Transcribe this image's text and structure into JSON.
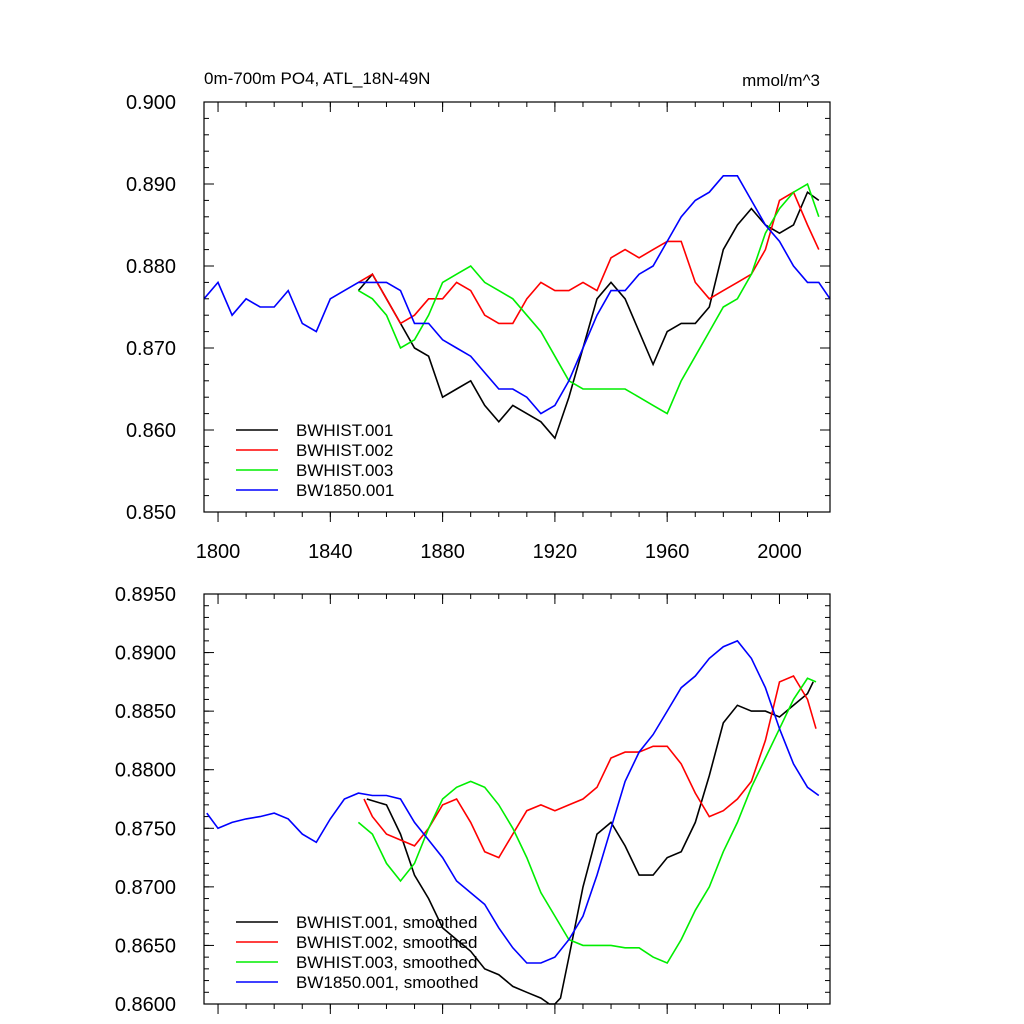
{
  "chart_data": [
    {
      "type": "line",
      "title": "0m-700m PO4, ATL_18N-49N",
      "units": "mmol/m^3",
      "xlim": [
        1795,
        2018
      ],
      "ylim": [
        0.85,
        0.9
      ],
      "x_ticks": [
        1800,
        1840,
        1880,
        1920,
        1960,
        2000
      ],
      "x_tick_labels": [
        "1800",
        "1840",
        "1880",
        "1920",
        "1960",
        "2000"
      ],
      "y_ticks": [
        0.85,
        0.86,
        0.87,
        0.88,
        0.89,
        0.9
      ],
      "y_tick_labels": [
        "0.850",
        "0.860",
        "0.870",
        "0.880",
        "0.890",
        "0.900"
      ],
      "legend_position": "bottom-left",
      "series": [
        {
          "name": "BWHIST.001",
          "color": "#000000",
          "x": [
            1850,
            1855,
            1860,
            1865,
            1870,
            1875,
            1880,
            1885,
            1890,
            1895,
            1900,
            1905,
            1910,
            1915,
            1920,
            1925,
            1930,
            1935,
            1940,
            1945,
            1950,
            1955,
            1960,
            1965,
            1970,
            1975,
            1980,
            1985,
            1990,
            1995,
            2000,
            2005,
            2010,
            2014
          ],
          "values": [
            0.877,
            0.879,
            0.876,
            0.873,
            0.87,
            0.869,
            0.864,
            0.865,
            0.866,
            0.863,
            0.861,
            0.863,
            0.862,
            0.861,
            0.859,
            0.864,
            0.87,
            0.876,
            0.878,
            0.876,
            0.872,
            0.868,
            0.872,
            0.873,
            0.873,
            0.875,
            0.882,
            0.885,
            0.887,
            0.885,
            0.884,
            0.885,
            0.889,
            0.888
          ]
        },
        {
          "name": "BWHIST.002",
          "color": "#ff0000",
          "x": [
            1850,
            1855,
            1860,
            1865,
            1870,
            1875,
            1880,
            1885,
            1890,
            1895,
            1900,
            1905,
            1910,
            1915,
            1920,
            1925,
            1930,
            1935,
            1940,
            1945,
            1950,
            1955,
            1960,
            1965,
            1970,
            1975,
            1980,
            1985,
            1990,
            1995,
            2000,
            2005,
            2010,
            2014
          ],
          "values": [
            0.878,
            0.879,
            0.876,
            0.873,
            0.874,
            0.876,
            0.876,
            0.878,
            0.877,
            0.874,
            0.873,
            0.873,
            0.876,
            0.878,
            0.877,
            0.877,
            0.878,
            0.877,
            0.881,
            0.882,
            0.881,
            0.882,
            0.883,
            0.883,
            0.878,
            0.876,
            0.877,
            0.878,
            0.879,
            0.882,
            0.888,
            0.889,
            0.885,
            0.882
          ]
        },
        {
          "name": "BWHIST.003",
          "color": "#00ee00",
          "x": [
            1850,
            1855,
            1860,
            1865,
            1870,
            1875,
            1880,
            1885,
            1890,
            1895,
            1900,
            1905,
            1910,
            1915,
            1920,
            1925,
            1930,
            1935,
            1940,
            1945,
            1950,
            1955,
            1960,
            1965,
            1970,
            1975,
            1980,
            1985,
            1990,
            1995,
            2000,
            2005,
            2010,
            2014
          ],
          "values": [
            0.877,
            0.876,
            0.874,
            0.87,
            0.871,
            0.874,
            0.878,
            0.879,
            0.88,
            0.878,
            0.877,
            0.876,
            0.874,
            0.872,
            0.869,
            0.866,
            0.865,
            0.865,
            0.865,
            0.865,
            0.864,
            0.863,
            0.862,
            0.866,
            0.869,
            0.872,
            0.875,
            0.876,
            0.879,
            0.884,
            0.887,
            0.889,
            0.89,
            0.886
          ]
        },
        {
          "name": "BW1850.001",
          "color": "#0000ff",
          "x": [
            1795,
            1800,
            1805,
            1810,
            1815,
            1820,
            1825,
            1830,
            1835,
            1840,
            1845,
            1850,
            1855,
            1860,
            1865,
            1870,
            1875,
            1880,
            1885,
            1890,
            1895,
            1900,
            1905,
            1910,
            1915,
            1920,
            1925,
            1930,
            1935,
            1940,
            1945,
            1950,
            1955,
            1960,
            1965,
            1970,
            1975,
            1980,
            1985,
            1990,
            1995,
            2000,
            2005,
            2010,
            2014,
            2018
          ],
          "values": [
            0.876,
            0.878,
            0.874,
            0.876,
            0.875,
            0.875,
            0.877,
            0.873,
            0.872,
            0.876,
            0.877,
            0.878,
            0.878,
            0.878,
            0.877,
            0.873,
            0.873,
            0.871,
            0.87,
            0.869,
            0.867,
            0.865,
            0.865,
            0.864,
            0.862,
            0.863,
            0.866,
            0.87,
            0.874,
            0.877,
            0.877,
            0.879,
            0.88,
            0.883,
            0.886,
            0.888,
            0.889,
            0.891,
            0.891,
            0.888,
            0.885,
            0.883,
            0.88,
            0.878,
            0.878,
            0.876
          ]
        }
      ]
    },
    {
      "type": "line",
      "title": "",
      "xlim": [
        1795,
        2018
      ],
      "ylim": [
        0.86,
        0.895
      ],
      "x_ticks": [
        1800,
        1840,
        1880,
        1920,
        1960,
        2000
      ],
      "y_ticks": [
        0.86,
        0.865,
        0.87,
        0.875,
        0.88,
        0.885,
        0.89,
        0.895
      ],
      "y_tick_labels": [
        "0.8600",
        "0.8650",
        "0.8700",
        "0.8750",
        "0.8800",
        "0.8850",
        "0.8900",
        "0.8950"
      ],
      "legend_position": "bottom-left",
      "series": [
        {
          "name": "BWHIST.001, smoothed",
          "color": "#000000",
          "x": [
            1853,
            1860,
            1865,
            1870,
            1875,
            1880,
            1885,
            1890,
            1895,
            1900,
            1905,
            1910,
            1915,
            1918,
            1920,
            1922,
            1925,
            1930,
            1935,
            1940,
            1945,
            1950,
            1955,
            1960,
            1965,
            1970,
            1975,
            1980,
            1985,
            1990,
            1995,
            2000,
            2005,
            2010,
            2012
          ],
          "values": [
            0.8775,
            0.877,
            0.8745,
            0.871,
            0.869,
            0.8665,
            0.8655,
            0.8645,
            0.863,
            0.8625,
            0.8615,
            0.861,
            0.8605,
            0.86,
            0.86,
            0.8605,
            0.864,
            0.87,
            0.8745,
            0.8755,
            0.8735,
            0.871,
            0.871,
            0.8725,
            0.873,
            0.8755,
            0.8795,
            0.884,
            0.8855,
            0.885,
            0.885,
            0.8845,
            0.8855,
            0.8865,
            0.8875
          ]
        },
        {
          "name": "BWHIST.002, smoothed",
          "color": "#ff0000",
          "x": [
            1852,
            1855,
            1860,
            1865,
            1870,
            1875,
            1880,
            1885,
            1890,
            1895,
            1900,
            1905,
            1910,
            1915,
            1920,
            1925,
            1930,
            1935,
            1940,
            1945,
            1950,
            1955,
            1960,
            1965,
            1970,
            1975,
            1980,
            1985,
            1990,
            1995,
            2000,
            2005,
            2010,
            2013
          ],
          "values": [
            0.8775,
            0.876,
            0.8745,
            0.874,
            0.8735,
            0.875,
            0.877,
            0.8775,
            0.8755,
            0.873,
            0.8725,
            0.8745,
            0.8765,
            0.877,
            0.8765,
            0.877,
            0.8775,
            0.8785,
            0.881,
            0.8815,
            0.8815,
            0.882,
            0.882,
            0.8805,
            0.878,
            0.876,
            0.8765,
            0.8775,
            0.879,
            0.8825,
            0.8875,
            0.888,
            0.886,
            0.8835
          ]
        },
        {
          "name": "BWHIST.003, smoothed",
          "color": "#00ee00",
          "x": [
            1850,
            1855,
            1860,
            1865,
            1870,
            1875,
            1880,
            1885,
            1890,
            1895,
            1900,
            1905,
            1910,
            1915,
            1920,
            1925,
            1930,
            1935,
            1940,
            1945,
            1950,
            1955,
            1960,
            1965,
            1970,
            1975,
            1980,
            1985,
            1990,
            1995,
            2000,
            2005,
            2010,
            2013
          ],
          "values": [
            0.8755,
            0.8745,
            0.872,
            0.8705,
            0.872,
            0.875,
            0.8775,
            0.8785,
            0.879,
            0.8785,
            0.877,
            0.875,
            0.8725,
            0.8695,
            0.8675,
            0.8655,
            0.865,
            0.865,
            0.865,
            0.8648,
            0.8648,
            0.864,
            0.8635,
            0.8655,
            0.868,
            0.87,
            0.873,
            0.8755,
            0.8785,
            0.881,
            0.8835,
            0.886,
            0.8878,
            0.8875
          ]
        },
        {
          "name": "BW1850.001, smoothed",
          "color": "#0000ff",
          "x": [
            1796,
            1800,
            1805,
            1810,
            1815,
            1820,
            1825,
            1830,
            1835,
            1840,
            1845,
            1850,
            1855,
            1860,
            1865,
            1870,
            1875,
            1880,
            1885,
            1890,
            1895,
            1900,
            1905,
            1910,
            1915,
            1920,
            1925,
            1930,
            1935,
            1940,
            1945,
            1950,
            1955,
            1960,
            1965,
            1970,
            1975,
            1980,
            1985,
            1990,
            1995,
            2000,
            2005,
            2010,
            2014
          ],
          "values": [
            0.8763,
            0.875,
            0.8755,
            0.8758,
            0.876,
            0.8763,
            0.8758,
            0.8745,
            0.8738,
            0.8758,
            0.8775,
            0.878,
            0.8778,
            0.8778,
            0.8775,
            0.8755,
            0.874,
            0.8725,
            0.8705,
            0.8695,
            0.8685,
            0.8665,
            0.8648,
            0.8635,
            0.8635,
            0.864,
            0.8655,
            0.8675,
            0.871,
            0.875,
            0.879,
            0.8815,
            0.883,
            0.885,
            0.887,
            0.888,
            0.8895,
            0.8905,
            0.891,
            0.8895,
            0.887,
            0.8835,
            0.8805,
            0.8785,
            0.8778
          ]
        }
      ]
    }
  ]
}
